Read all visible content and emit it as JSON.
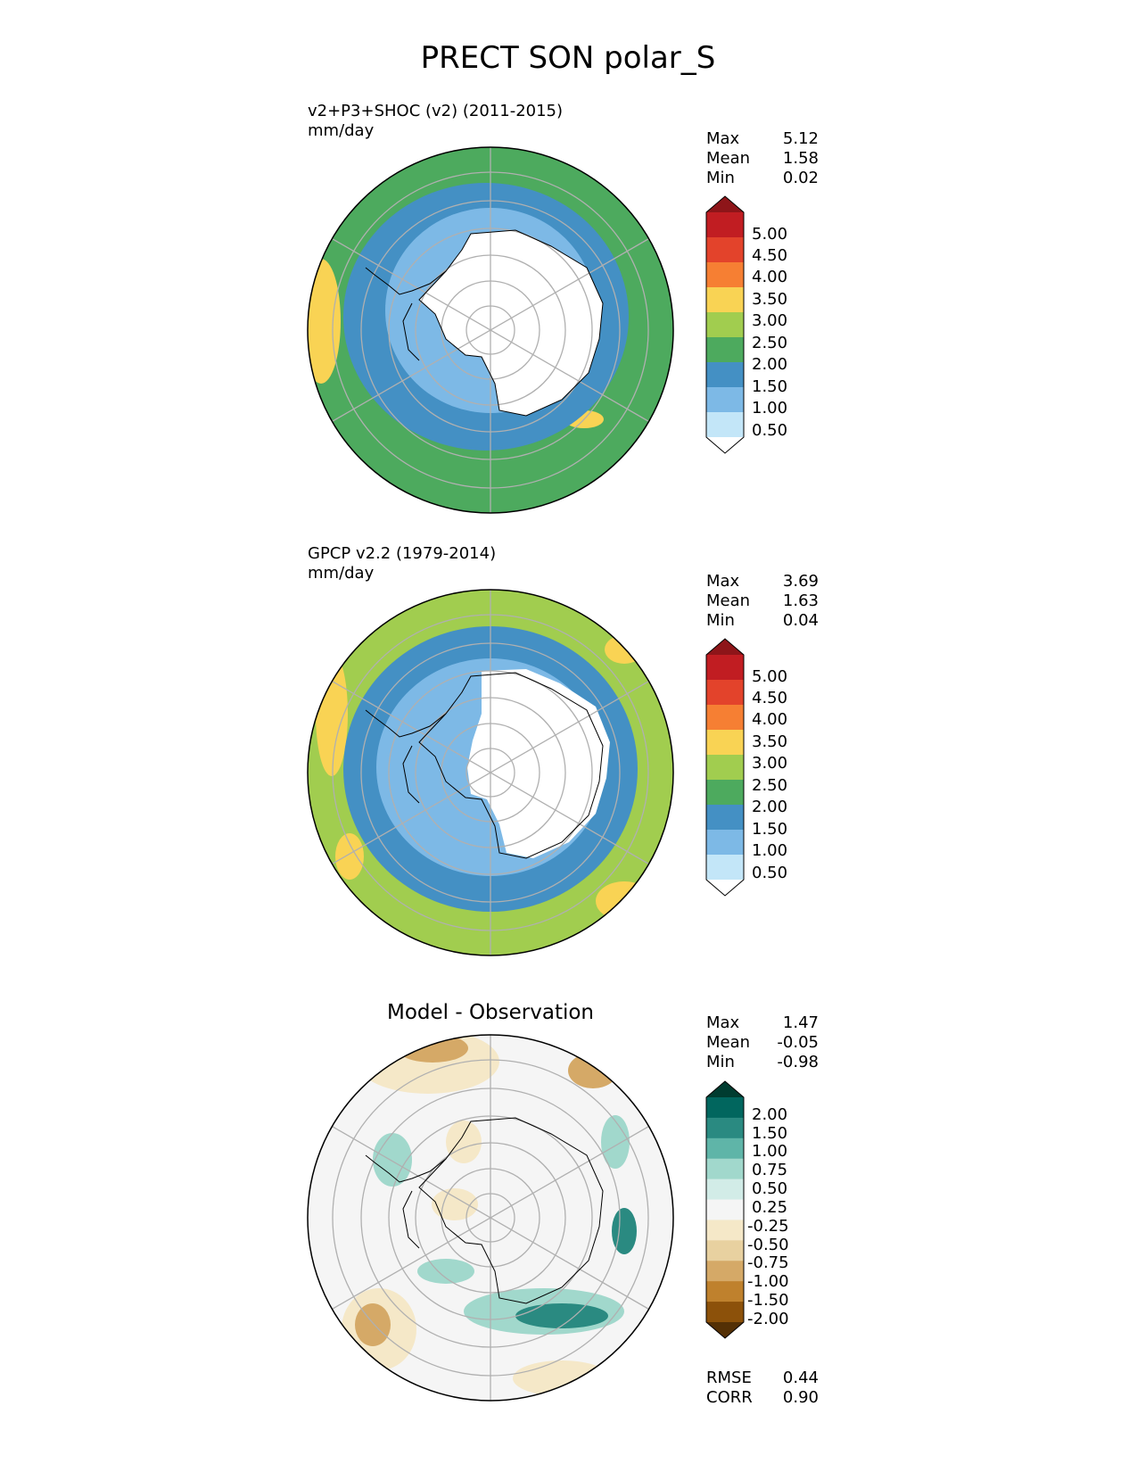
{
  "figure": {
    "title": "PRECT SON polar_S"
  },
  "chart_data": [
    {
      "type": "heatmap",
      "projection": "south-polar-stereographic",
      "title": "",
      "subtitle": "v2+P3+SHOC (v2) (2011-2015)",
      "units": "mm/day",
      "stats": [
        {
          "label": "Max",
          "value": "5.12"
        },
        {
          "label": "Mean",
          "value": "1.58"
        },
        {
          "label": "Min",
          "value": "0.02"
        }
      ],
      "colorbar": {
        "ticks": [
          "5.00",
          "4.50",
          "4.00",
          "3.50",
          "3.00",
          "2.50",
          "2.00",
          "1.50",
          "1.00",
          "0.50"
        ],
        "levels": [
          0.5,
          1,
          1.5,
          2,
          2.5,
          3,
          3.5,
          4,
          4.5,
          5
        ],
        "colors": [
          "#ffffff",
          "#c3e6f8",
          "#7db9e6",
          "#4490c4",
          "#4daa5e",
          "#a1cd4f",
          "#f9d354",
          "#f67f33",
          "#e3432b",
          "#c11d22",
          "#8e1519"
        ],
        "extend": "both"
      },
      "fields": {
        "antarctica": 0.3,
        "sea_ice_ring": 1.2,
        "inner_ocean": 1.7,
        "outer_ocean": 2.3,
        "high_anomaly": 3.3
      },
      "grid": true,
      "extra_stats": []
    },
    {
      "type": "heatmap",
      "projection": "south-polar-stereographic",
      "title": "",
      "subtitle": "GPCP v2.2 (1979-2014)",
      "units": "mm/day",
      "stats": [
        {
          "label": "Max",
          "value": "3.69"
        },
        {
          "label": "Mean",
          "value": "1.63"
        },
        {
          "label": "Min",
          "value": "0.04"
        }
      ],
      "colorbar": {
        "ticks": [
          "5.00",
          "4.50",
          "4.00",
          "3.50",
          "3.00",
          "2.50",
          "2.00",
          "1.50",
          "1.00",
          "0.50"
        ],
        "levels": [
          0.5,
          1,
          1.5,
          2,
          2.5,
          3,
          3.5,
          4,
          4.5,
          5
        ],
        "colors": [
          "#ffffff",
          "#c3e6f8",
          "#7db9e6",
          "#4490c4",
          "#4daa5e",
          "#a1cd4f",
          "#f9d354",
          "#f67f33",
          "#e3432b",
          "#c11d22",
          "#8e1519"
        ],
        "extend": "both"
      },
      "fields": {
        "antarctica": 0.3,
        "sea_ice_ring": 1.2,
        "inner_ocean": 1.7,
        "outer_ocean": 2.7,
        "high_anomaly": 3.2
      },
      "grid": true,
      "extra_stats": []
    },
    {
      "type": "heatmap",
      "projection": "south-polar-stereographic",
      "title": "Model - Observation",
      "subtitle": "",
      "units": "",
      "stats": [
        {
          "label": "Max",
          "value": "1.47"
        },
        {
          "label": "Mean",
          "value": "-0.05"
        },
        {
          "label": "Min",
          "value": "-0.98"
        }
      ],
      "colorbar": {
        "ticks": [
          "2.00",
          "1.50",
          "1.00",
          "0.75",
          "0.50",
          "0.25",
          "-0.25",
          "-0.50",
          "-0.75",
          "-1.00",
          "-1.50",
          "-2.00"
        ],
        "levels": [
          -2,
          -1.5,
          -1,
          -0.75,
          -0.5,
          -0.25,
          0.25,
          0.5,
          0.75,
          1,
          1.5,
          2
        ],
        "colors": [
          "#543005",
          "#8c510a",
          "#bf812d",
          "#d5a967",
          "#e8d1a0",
          "#f5e8c8",
          "#f5f5f5",
          "#d2ece7",
          "#a1d8cc",
          "#5fb5a8",
          "#2a8a81",
          "#01665e",
          "#003c30"
        ],
        "extend": "both"
      },
      "fields": {
        "background": 0.0,
        "positive_anomaly": 1.2,
        "weak_positive": 0.6,
        "negative_anomaly": -0.8,
        "weak_negative": -0.4
      },
      "grid": true,
      "extra_stats": [
        {
          "label": "RMSE",
          "value": "0.44"
        },
        {
          "label": "CORR",
          "value": "0.90"
        }
      ]
    }
  ]
}
